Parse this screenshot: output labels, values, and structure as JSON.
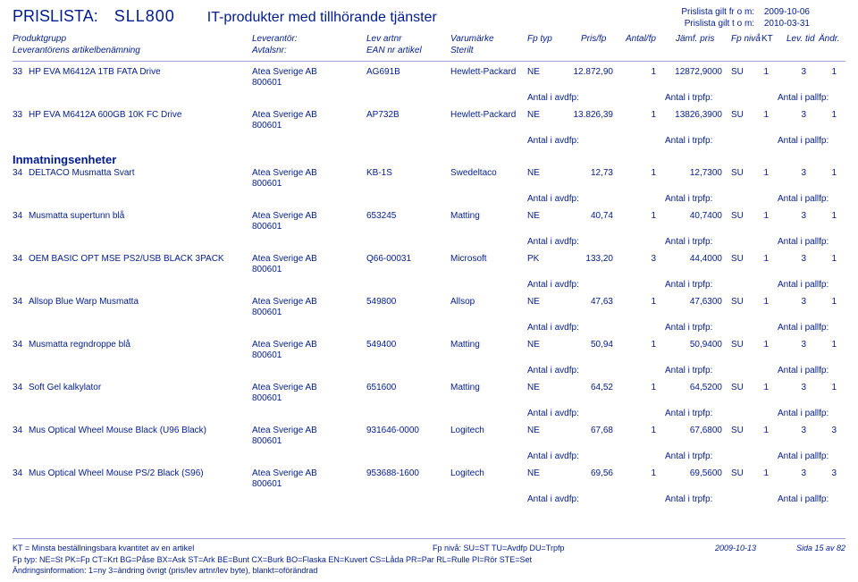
{
  "header": {
    "label_prislista": "PRISLISTA:",
    "code": "SLL800",
    "subtitle": "IT-produkter med tillhörande tjänster",
    "gilt_from_lbl": "Prislista gilt fr o m:",
    "gilt_from": "2009-10-06",
    "gilt_to_lbl": "Prislista gilt t o m:",
    "gilt_to": "2010-03-31"
  },
  "cols": {
    "produktgrupp": "Produktgrupp",
    "lev_artikelben": "Leverantörens artikelbenämning",
    "leverantor": "Leverantör:",
    "avtalsnr": "Avtalsnr:",
    "lev_artnr": "Lev artnr",
    "ean": "EAN nr artikel",
    "varumarke": "Varumärke",
    "sterilt": "Sterilt",
    "fptyp": "Fp typ",
    "prisfp": "Pris/fp",
    "antalfp": "Antal/fp",
    "jamf": "Jämf. pris",
    "fpniva": "Fp nivå",
    "kt": "KT",
    "levtid": "Lev. tid",
    "andr": "Ändr."
  },
  "antal_labels": {
    "avdfp": "Antal i avdfp:",
    "trpfp": "Antal i trpfp:",
    "pallfp": "Antal i pallfp:"
  },
  "section": "Inmatningsenheter",
  "rows": [
    {
      "grp": "33",
      "name": "HP EVA M6412A 1TB FATA Drive",
      "lev": "Atea Sverige AB",
      "avt": "800601",
      "art": "AG691B",
      "var": "Hewlett-Packard",
      "fptyp": "NE",
      "pris": "12.872,90",
      "ant": "1",
      "jamf": "12872,9000",
      "fpn": "SU",
      "kt": "1",
      "lt": "3",
      "an": "1"
    },
    {
      "grp": "33",
      "name": "HP EVA M6412A 600GB 10K FC Drive",
      "lev": "Atea Sverige AB",
      "avt": "800601",
      "art": "AP732B",
      "var": "Hewlett-Packard",
      "fptyp": "NE",
      "pris": "13.826,39",
      "ant": "1",
      "jamf": "13826,3900",
      "fpn": "SU",
      "kt": "1",
      "lt": "3",
      "an": "1"
    },
    {
      "grp": "34",
      "name": "DELTACO Musmatta Svart",
      "lev": "Atea Sverige AB",
      "avt": "800601",
      "art": "KB-1S",
      "var": "Swedeltaco",
      "fptyp": "NE",
      "pris": "12,73",
      "ant": "1",
      "jamf": "12,7300",
      "fpn": "SU",
      "kt": "1",
      "lt": "3",
      "an": "1"
    },
    {
      "grp": "34",
      "name": "Musmatta supertunn blå",
      "lev": "Atea Sverige AB",
      "avt": "800601",
      "art": "653245",
      "var": "Matting",
      "fptyp": "NE",
      "pris": "40,74",
      "ant": "1",
      "jamf": "40,7400",
      "fpn": "SU",
      "kt": "1",
      "lt": "3",
      "an": "1"
    },
    {
      "grp": "34",
      "name": "OEM BASIC OPT MSE PS2/USB BLACK 3PACK",
      "lev": "Atea Sverige AB",
      "avt": "800601",
      "art": "Q66-00031",
      "var": "Microsoft",
      "fptyp": "PK",
      "pris": "133,20",
      "ant": "3",
      "jamf": "44,4000",
      "fpn": "SU",
      "kt": "1",
      "lt": "3",
      "an": "1"
    },
    {
      "grp": "34",
      "name": "Allsop Blue Warp Musmatta",
      "lev": "Atea Sverige AB",
      "avt": "800601",
      "art": "549800",
      "var": "Allsop",
      "fptyp": "NE",
      "pris": "47,63",
      "ant": "1",
      "jamf": "47,6300",
      "fpn": "SU",
      "kt": "1",
      "lt": "3",
      "an": "1"
    },
    {
      "grp": "34",
      "name": "Musmatta regndroppe blå",
      "lev": "Atea Sverige AB",
      "avt": "800601",
      "art": "549400",
      "var": "Matting",
      "fptyp": "NE",
      "pris": "50,94",
      "ant": "1",
      "jamf": "50,9400",
      "fpn": "SU",
      "kt": "1",
      "lt": "3",
      "an": "1"
    },
    {
      "grp": "34",
      "name": "Soft Gel kalkylator",
      "lev": "Atea Sverige AB",
      "avt": "800601",
      "art": "651600",
      "var": "Matting",
      "fptyp": "NE",
      "pris": "64,52",
      "ant": "1",
      "jamf": "64,5200",
      "fpn": "SU",
      "kt": "1",
      "lt": "3",
      "an": "1"
    },
    {
      "grp": "34",
      "name": "Mus Optical Wheel Mouse Black (U96 Black)",
      "lev": "Atea Sverige AB",
      "avt": "800601",
      "art": "931646-0000",
      "var": "Logitech",
      "fptyp": "NE",
      "pris": "67,68",
      "ant": "1",
      "jamf": "67,6800",
      "fpn": "SU",
      "kt": "1",
      "lt": "3",
      "an": "3"
    },
    {
      "grp": "34",
      "name": "Mus Optical Wheel Mouse PS/2 Black (S96)",
      "lev": "Atea Sverige AB",
      "avt": "800601",
      "art": "953688-1600",
      "var": "Logitech",
      "fptyp": "NE",
      "pris": "69,56",
      "ant": "1",
      "jamf": "69,5600",
      "fpn": "SU",
      "kt": "1",
      "lt": "3",
      "an": "3"
    }
  ],
  "footer": {
    "line1a": "KT = Minsta beställningsbara kvantitet av en artikel",
    "line1b": "Fp nivå: SU=ST TU=Avdfp DU=Trpfp",
    "line2": "Fp typ: NE=St PK=Fp CT=Krt BG=Påse BX=Ask ST=Ark BE=Bunt CX=Burk BO=Flaska EN=Kuvert CS=Låda PR=Par RL=Rulle PI=Rör STE=Set",
    "line3": "Ändringsinformation: 1=ny 3=ändring övrigt (pris/lev artnr/lev byte),  blankt=oförändrad",
    "date": "2009-10-13",
    "page": "Sida 15 av 82"
  }
}
